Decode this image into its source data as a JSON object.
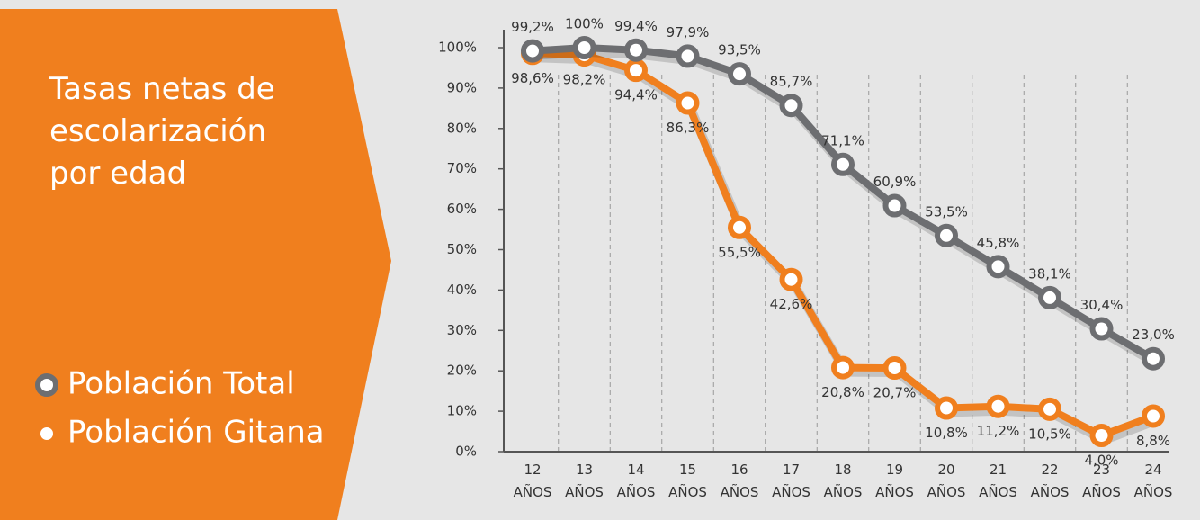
{
  "chart_data": {
    "type": "line",
    "title": "Tasas netas de escolarización por edad",
    "categories": [
      "12 AÑOS",
      "13 AÑOS",
      "14 AÑOS",
      "15 AÑOS",
      "16 AÑOS",
      "17 AÑOS",
      "18 AÑOS",
      "19 AÑOS",
      "20 AÑOS",
      "21 AÑOS",
      "22 AÑOS",
      "23 AÑOS",
      "24 AÑOS"
    ],
    "series": [
      {
        "name": "Población Total",
        "color": "#6d6e71",
        "values": [
          99.2,
          100,
          99.4,
          97.9,
          93.5,
          85.7,
          71.1,
          60.9,
          53.5,
          45.8,
          38.1,
          30.4,
          23.0
        ],
        "value_labels": [
          "99,2%",
          "100%",
          "99,4%",
          "97,9%",
          "93,5%",
          "85,7%",
          "71,1%",
          "60,9%",
          "53,5%",
          "45,8%",
          "38,1%",
          "30,4%",
          "23,0%"
        ]
      },
      {
        "name": "Población Gitana",
        "color": "#f07f1e",
        "values": [
          98.6,
          98.2,
          94.4,
          86.3,
          55.5,
          42.6,
          20.8,
          20.7,
          10.8,
          11.2,
          10.5,
          4.0,
          8.8
        ],
        "value_labels": [
          "98,6%",
          "98,2%",
          "94,4%",
          "86,3%",
          "55,5%",
          "42,6%",
          "20,8%",
          "20,7%",
          "10,8%",
          "11,2%",
          "10,5%",
          "4,0%",
          "8,8%"
        ]
      }
    ],
    "ylim": [
      0,
      100
    ],
    "yticks": [
      {
        "value": 0,
        "label": "0%"
      },
      {
        "value": 10,
        "label": "10%"
      },
      {
        "value": 20,
        "label": "20%"
      },
      {
        "value": 30,
        "label": "30%"
      },
      {
        "value": 40,
        "label": "40%"
      },
      {
        "value": 50,
        "label": "50%"
      },
      {
        "value": 60,
        "label": "60%"
      },
      {
        "value": 70,
        "label": "70%"
      },
      {
        "value": 80,
        "label": "80%"
      },
      {
        "value": 90,
        "label": "90%"
      },
      {
        "value": 100,
        "label": "100%"
      }
    ],
    "grid": true
  }
}
